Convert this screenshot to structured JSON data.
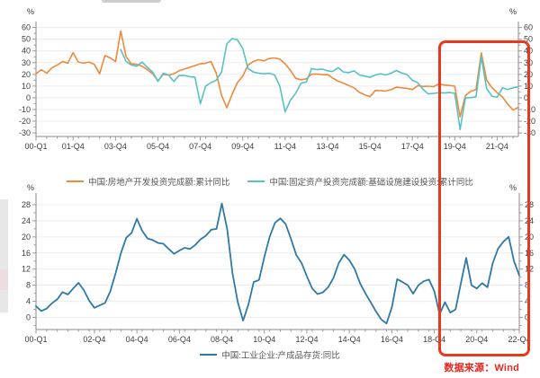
{
  "source_note": "数据来源：Wind",
  "colors": {
    "real_estate": "#f0883c",
    "infrastructure": "#56c2c4",
    "inventory": "#2e79a8",
    "highlight": "#e8381d",
    "source_text": "#e8281e",
    "axis_line": "#888888",
    "tick": "#999999",
    "axis_text": "#3c3c3c",
    "grid": "#ececec",
    "legend_text": "#555555"
  },
  "chart_data": [
    {
      "type": "line",
      "title": "",
      "unit": "%",
      "x_start": "2000-Q1",
      "x_end": "2022-Q4",
      "freq": "quarterly",
      "ylim": [
        -30,
        60
      ],
      "yticks": [
        60,
        50,
        40,
        30,
        20,
        10,
        0,
        -10,
        -20,
        -30
      ],
      "x_tick_labels": [
        "00-Q1",
        "01-Q4",
        "03-Q4",
        "05-Q4",
        "07-Q4",
        "09-Q4",
        "11-Q4",
        "13-Q4",
        "15-Q4",
        "17-Q4",
        "19-Q4",
        "21-Q4"
      ],
      "x_tick_quarters": [
        0,
        7,
        15,
        23,
        31,
        39,
        47,
        55,
        63,
        71,
        79,
        87
      ],
      "grid": true,
      "legend_position": "bottom",
      "series": [
        {
          "name": "中国:房地产开发投资完成额:累计同比",
          "color_key": "real_estate",
          "start_quarter": 0,
          "values": [
            20.5,
            24,
            21,
            25.5,
            28,
            31,
            29.5,
            38.5,
            30.5,
            29.5,
            30.5,
            28.5,
            20.5,
            36,
            34,
            31,
            57,
            35,
            29,
            28.5,
            27,
            24,
            20.5,
            14.5,
            20,
            19.5,
            20.5,
            23,
            24.5,
            26,
            27.5,
            29,
            29.5,
            31,
            21,
            2,
            -8.5,
            3,
            13,
            18.5,
            28,
            31,
            32.5,
            31.5,
            33.5,
            34,
            33,
            29,
            23.5,
            16.6,
            15.4,
            16.2,
            20.2,
            20.3,
            19.7,
            19.8,
            16.8,
            14.1,
            12.5,
            10.5,
            8.5,
            4.6,
            2.6,
            1.0,
            6.2,
            6.1,
            5.8,
            6.9,
            9.1,
            8.5,
            8.1,
            7.0,
            10.4,
            9.7,
            9.9,
            9.5,
            11.8,
            10.9,
            10.5,
            9.9,
            -16.3,
            1.9,
            5.6,
            7.0,
            38.3,
            15.0,
            8.8,
            4.4,
            0.7,
            -5.4,
            -10.5,
            -8.0
          ]
        },
        {
          "name": "中国:固定资产投资完成额:基础设施建设投资:累计同比",
          "color_key": "infrastructure",
          "start_quarter": 16,
          "values": [
            41,
            31,
            28,
            27,
            30.5,
            26,
            22,
            14,
            21,
            19.5,
            14,
            19,
            19,
            18,
            17.5,
            -5,
            10,
            13,
            15,
            22,
            46,
            50.5,
            49.5,
            42,
            25,
            22,
            21,
            20.5,
            21,
            19.5,
            10,
            -12,
            -2,
            4,
            12.5,
            13.5,
            25,
            24,
            24.5,
            23,
            22.5,
            25.8,
            22,
            21.5,
            23,
            19.5,
            18.5,
            17.5,
            19.5,
            20.5,
            19.5,
            21,
            23.3,
            21.1,
            19.8,
            14.9,
            13,
            7.3,
            3.3,
            3.8,
            4.4,
            4.1,
            4.5,
            3.8,
            -27,
            -0.1,
            0.2,
            0.9,
            35,
            7.8,
            1.5,
            0.4,
            8.5,
            7.1,
            8.6,
            9.4
          ]
        }
      ]
    },
    {
      "type": "line",
      "title": "",
      "unit": "%",
      "x_start": "2000-Q1",
      "x_end": "2022-Q4",
      "freq": "quarterly",
      "ylim": [
        -3,
        30
      ],
      "yticks": [
        28,
        24,
        20,
        16,
        12,
        8,
        4,
        0
      ],
      "x_tick_labels": [
        "00-Q1",
        "02-Q4",
        "04-Q4",
        "06-Q4",
        "08-Q4",
        "10-Q4",
        "12-Q4",
        "14-Q4",
        "16-Q4",
        "18-Q4",
        "20-Q4",
        "22-Q4"
      ],
      "x_tick_quarters": [
        0,
        11,
        19,
        27,
        35,
        43,
        51,
        59,
        67,
        75,
        83,
        91
      ],
      "grid": true,
      "legend_position": "bottom",
      "series": [
        {
          "name": "中国:工业企业:产成品存货:同比",
          "color_key": "inventory",
          "start_quarter": 0,
          "values": [
            2.8,
            1.6,
            2.2,
            3.5,
            4.5,
            6.3,
            5.7,
            7.2,
            8.6,
            6.8,
            4.2,
            2.4,
            3.0,
            3.6,
            6.5,
            11.0,
            16.0,
            19.8,
            21.0,
            24.5,
            21.5,
            19.6,
            19.2,
            18.5,
            18.3,
            17.0,
            15.8,
            16.6,
            17.3,
            17.0,
            18.0,
            19.4,
            20.3,
            21.8,
            22.0,
            28.3,
            22.0,
            11.0,
            3.8,
            -0.8,
            3.2,
            8.8,
            9.3,
            15.0,
            20.0,
            23.5,
            24.6,
            23.2,
            19.5,
            15.5,
            13.5,
            10.2,
            7.2,
            5.8,
            6.2,
            7.5,
            9.8,
            13.5,
            15.6,
            14.2,
            12.0,
            8.5,
            6.0,
            3.8,
            1.5,
            -0.5,
            -1.5,
            2.5,
            9.5,
            8.8,
            8.0,
            5.9,
            8.0,
            9.0,
            9.4,
            6.5,
            0.8,
            3.8,
            1.2,
            2.0,
            8.5,
            14.8,
            8.0,
            7.2,
            8.5,
            7.5,
            13.5,
            17.1,
            18.8,
            20.0,
            14.0,
            10.4
          ]
        }
      ]
    }
  ],
  "highlight": {
    "description": "red rectangle highlighting 2019–2022 period across both charts"
  }
}
